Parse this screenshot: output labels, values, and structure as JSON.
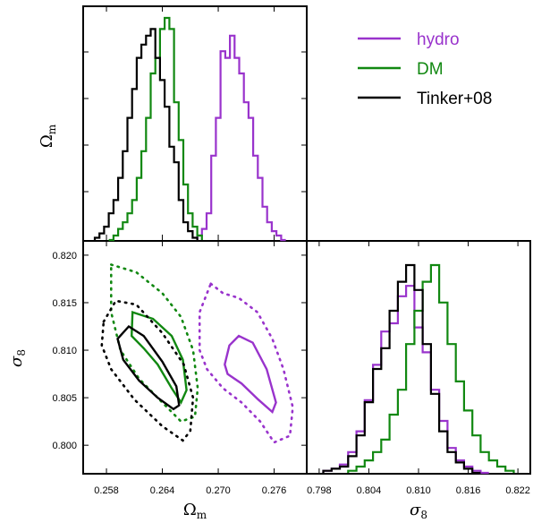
{
  "colors": {
    "hydro": "#9933cc",
    "dm": "#118811",
    "tinker": "#000000"
  },
  "legend": [
    {
      "key": "hydro",
      "label": "hydro"
    },
    {
      "key": "dm",
      "label": "DM"
    },
    {
      "key": "tinker",
      "label": "Tinker+08"
    }
  ],
  "labels": {
    "omega_m": "Ω",
    "omega_m_sub": "m",
    "sigma8": "σ",
    "sigma8_sub": "8"
  },
  "chart_data": [
    {
      "type": "line",
      "panel": "omega_m_marginal",
      "xlim": [
        0.2555,
        0.2795
      ],
      "series": [
        {
          "key": "hydro",
          "name": "hydro",
          "x": [
            0.268,
            0.2685,
            0.269,
            0.2695,
            0.27,
            0.2705,
            0.271,
            0.2715,
            0.272,
            0.2725,
            0.273,
            0.2735,
            0.274,
            0.2745,
            0.275,
            0.2755,
            0.276,
            0.2765,
            0.277
          ],
          "y": [
            0.02,
            0.05,
            0.12,
            0.38,
            0.55,
            0.85,
            0.82,
            0.92,
            0.82,
            0.75,
            0.62,
            0.55,
            0.38,
            0.28,
            0.15,
            0.08,
            0.04,
            0.02,
            0.0
          ]
        },
        {
          "key": "dm",
          "name": "DM",
          "x": [
            0.2585,
            0.259,
            0.2595,
            0.26,
            0.2605,
            0.261,
            0.2615,
            0.262,
            0.2625,
            0.263,
            0.2635,
            0.264,
            0.2645,
            0.265,
            0.2655,
            0.266,
            0.2665,
            0.267,
            0.2675,
            0.268
          ],
          "y": [
            0.0,
            0.02,
            0.05,
            0.08,
            0.12,
            0.18,
            0.28,
            0.4,
            0.55,
            0.75,
            0.82,
            0.95,
            1.0,
            0.95,
            0.62,
            0.45,
            0.25,
            0.12,
            0.06,
            0.02
          ]
        },
        {
          "key": "tinker",
          "name": "Tinker+08",
          "x": [
            0.257,
            0.2575,
            0.258,
            0.2585,
            0.259,
            0.2595,
            0.26,
            0.2605,
            0.261,
            0.2615,
            0.262,
            0.2625,
            0.263,
            0.2635,
            0.264,
            0.2645,
            0.265,
            0.2655,
            0.266,
            0.2665,
            0.267,
            0.2675
          ],
          "y": [
            0.01,
            0.03,
            0.06,
            0.12,
            0.18,
            0.28,
            0.4,
            0.55,
            0.68,
            0.82,
            0.88,
            0.92,
            0.95,
            0.82,
            0.72,
            0.6,
            0.42,
            0.35,
            0.18,
            0.08,
            0.04,
            0.01
          ]
        }
      ]
    },
    {
      "type": "scatter",
      "panel": "joint_contours",
      "xlim": [
        0.2555,
        0.2795
      ],
      "ylim": [
        0.797,
        0.8215
      ],
      "xticks": [
        "0.258",
        "0.264",
        "0.270",
        "0.276"
      ],
      "yticks": [
        "0.800",
        "0.805",
        "0.810",
        "0.815",
        "0.820"
      ],
      "series": [
        {
          "key": "hydro",
          "level": "inner",
          "points": [
            [
              0.2707,
              0.8085
            ],
            [
              0.2712,
              0.8105
            ],
            [
              0.2722,
              0.8115
            ],
            [
              0.2737,
              0.8108
            ],
            [
              0.2752,
              0.808
            ],
            [
              0.2762,
              0.8045
            ],
            [
              0.2758,
              0.8035
            ],
            [
              0.2743,
              0.8048
            ],
            [
              0.2725,
              0.8065
            ],
            [
              0.271,
              0.8075
            ]
          ]
        },
        {
          "key": "hydro",
          "level": "outer",
          "points": [
            [
              0.2692,
              0.817
            ],
            [
              0.2705,
              0.816
            ],
            [
              0.2722,
              0.8155
            ],
            [
              0.2742,
              0.814
            ],
            [
              0.2758,
              0.8112
            ],
            [
              0.277,
              0.808
            ],
            [
              0.278,
              0.804
            ],
            [
              0.2777,
              0.801
            ],
            [
              0.276,
              0.8003
            ],
            [
              0.2745,
              0.8025
            ],
            [
              0.2725,
              0.8045
            ],
            [
              0.2705,
              0.806
            ],
            [
              0.2688,
              0.808
            ],
            [
              0.268,
              0.81
            ],
            [
              0.268,
              0.814
            ]
          ]
        },
        {
          "key": "dm",
          "level": "inner",
          "points": [
            [
              0.2608,
              0.814
            ],
            [
              0.263,
              0.8133
            ],
            [
              0.265,
              0.8115
            ],
            [
              0.2662,
              0.809
            ],
            [
              0.2666,
              0.8058
            ],
            [
              0.266,
              0.8045
            ],
            [
              0.265,
              0.806
            ],
            [
              0.2635,
              0.8085
            ],
            [
              0.262,
              0.8102
            ],
            [
              0.2607,
              0.8115
            ]
          ]
        },
        {
          "key": "dm",
          "level": "outer",
          "points": [
            [
              0.2585,
              0.819
            ],
            [
              0.2612,
              0.8182
            ],
            [
              0.264,
              0.816
            ],
            [
              0.266,
              0.8135
            ],
            [
              0.2673,
              0.81
            ],
            [
              0.2678,
              0.806
            ],
            [
              0.2675,
              0.803
            ],
            [
              0.266,
              0.8025
            ],
            [
              0.264,
              0.8045
            ],
            [
              0.2615,
              0.807
            ],
            [
              0.2595,
              0.81
            ],
            [
              0.2585,
              0.814
            ]
          ]
        },
        {
          "key": "tinker",
          "level": "inner",
          "points": [
            [
              0.2592,
              0.8112
            ],
            [
              0.2604,
              0.8125
            ],
            [
              0.262,
              0.8115
            ],
            [
              0.264,
              0.8088
            ],
            [
              0.2655,
              0.8062
            ],
            [
              0.2658,
              0.8042
            ],
            [
              0.2652,
              0.8038
            ],
            [
              0.2635,
              0.805
            ],
            [
              0.2615,
              0.8068
            ],
            [
              0.2598,
              0.809
            ]
          ]
        },
        {
          "key": "tinker",
          "level": "outer",
          "points": [
            [
              0.2577,
              0.813
            ],
            [
              0.259,
              0.8152
            ],
            [
              0.2612,
              0.8148
            ],
            [
              0.264,
              0.8118
            ],
            [
              0.2663,
              0.8085
            ],
            [
              0.2673,
              0.805
            ],
            [
              0.267,
              0.8015
            ],
            [
              0.2662,
              0.8005
            ],
            [
              0.264,
              0.802
            ],
            [
              0.261,
              0.8048
            ],
            [
              0.2585,
              0.808
            ],
            [
              0.2575,
              0.8105
            ]
          ]
        }
      ]
    },
    {
      "type": "line",
      "panel": "sigma8_marginal",
      "xlim": [
        0.7965,
        0.8235
      ],
      "xticks": [
        "0.798",
        "0.804",
        "0.810",
        "0.816",
        "0.822"
      ],
      "series": [
        {
          "key": "hydro",
          "name": "hydro",
          "x": [
            0.799,
            0.8,
            0.801,
            0.802,
            0.803,
            0.804,
            0.805,
            0.806,
            0.807,
            0.808,
            0.809,
            0.81,
            0.811,
            0.812,
            0.813,
            0.814,
            0.815,
            0.816,
            0.817,
            0.818
          ],
          "y": [
            0.01,
            0.02,
            0.04,
            0.1,
            0.2,
            0.35,
            0.52,
            0.68,
            0.72,
            0.85,
            0.9,
            0.7,
            0.58,
            0.4,
            0.25,
            0.12,
            0.06,
            0.03,
            0.01,
            0.0
          ]
        },
        {
          "key": "dm",
          "name": "DM",
          "x": [
            0.802,
            0.803,
            0.804,
            0.805,
            0.806,
            0.807,
            0.808,
            0.809,
            0.81,
            0.811,
            0.812,
            0.813,
            0.814,
            0.815,
            0.816,
            0.817,
            0.818,
            0.819,
            0.82,
            0.821
          ],
          "y": [
            0.01,
            0.03,
            0.06,
            0.1,
            0.16,
            0.28,
            0.4,
            0.62,
            0.78,
            0.92,
            1.0,
            0.82,
            0.62,
            0.44,
            0.3,
            0.18,
            0.1,
            0.06,
            0.03,
            0.01
          ]
        },
        {
          "key": "tinker",
          "name": "Tinker+08",
          "x": [
            0.799,
            0.8,
            0.801,
            0.802,
            0.803,
            0.804,
            0.805,
            0.806,
            0.807,
            0.808,
            0.809,
            0.81,
            0.811,
            0.812,
            0.813,
            0.814,
            0.815,
            0.816,
            0.817
          ],
          "y": [
            0.01,
            0.02,
            0.03,
            0.08,
            0.18,
            0.34,
            0.5,
            0.6,
            0.78,
            0.92,
            1.0,
            0.88,
            0.62,
            0.38,
            0.2,
            0.1,
            0.05,
            0.02,
            0.0
          ]
        }
      ]
    }
  ]
}
